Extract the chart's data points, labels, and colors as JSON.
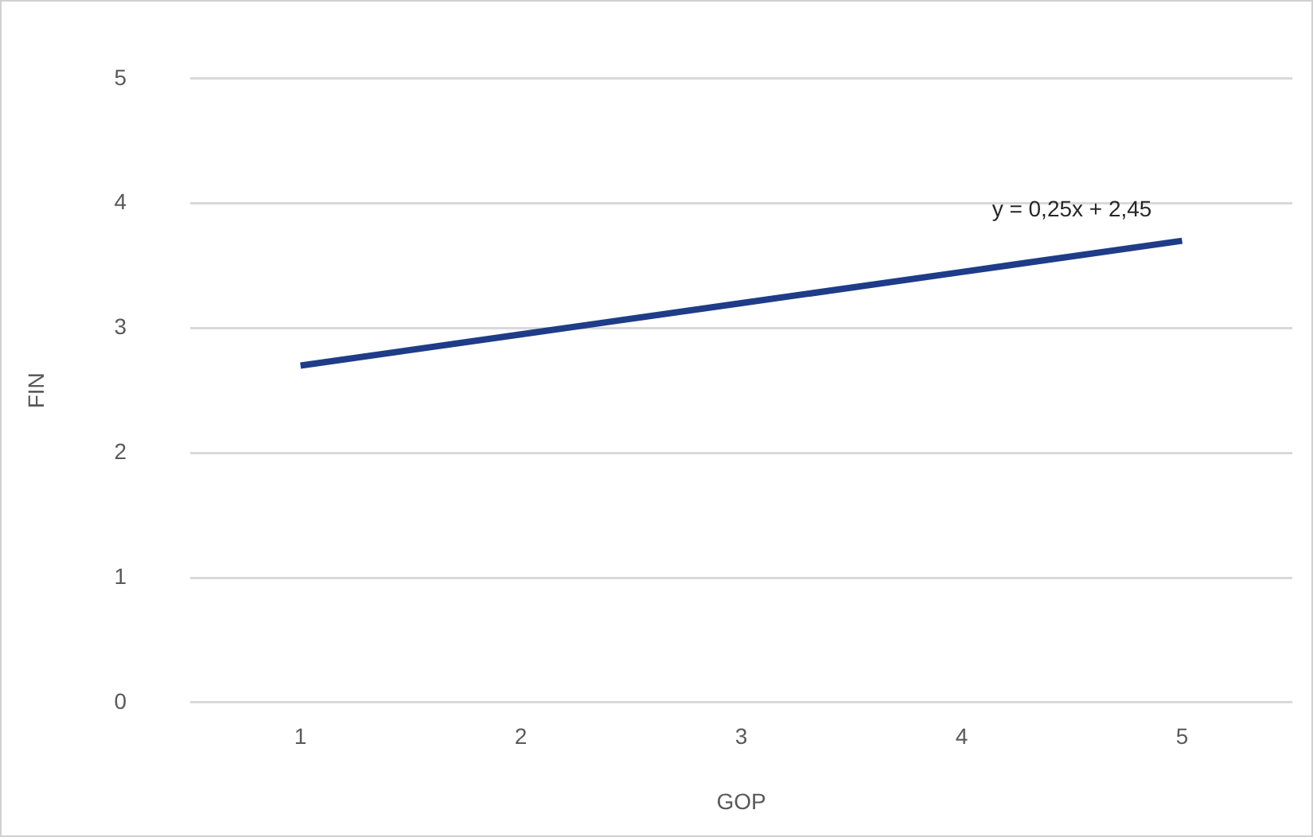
{
  "chart_data": {
    "type": "line",
    "xlabel": "GOP",
    "ylabel": "FIN",
    "categories": [
      "1",
      "2",
      "3",
      "4",
      "5"
    ],
    "series": [
      {
        "color": "#1f3c88",
        "values": [
          2.7,
          2.95,
          3.2,
          3.45,
          3.7
        ]
      }
    ],
    "ylim": [
      0,
      5
    ],
    "yticks": [
      0,
      1,
      2,
      3,
      4,
      5
    ],
    "grid": "y",
    "legend": false,
    "marker": "none",
    "line_style": "solid",
    "annotations": [
      "y = 0,25x + 2,45"
    ]
  }
}
